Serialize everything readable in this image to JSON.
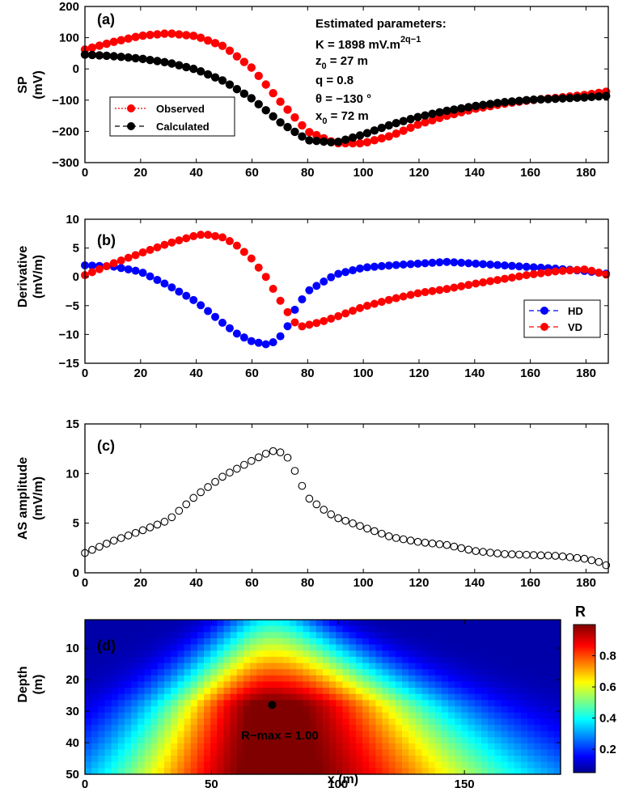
{
  "chart_data": [
    {
      "type": "line",
      "panel_label": "(a)",
      "ylabel_line1": "SP",
      "ylabel_line2": "(mV)",
      "xlim": [
        0,
        188
      ],
      "ylim": [
        -300,
        200
      ],
      "x_ticks": [
        0,
        20,
        40,
        60,
        80,
        100,
        120,
        140,
        160,
        180
      ],
      "y_ticks": [
        200,
        100,
        0,
        -100,
        -200,
        -300
      ],
      "annotation": {
        "title": "Estimated parameters:",
        "k_line": "K = 1898 mV.m",
        "k_sup": "2q−1",
        "z_line": "z",
        "z_sub": "0",
        "z_value": " = 27 m",
        "q_line": "q = 0.8",
        "theta_line": "θ = −130 °",
        "x_line": "x",
        "x_sub": "0",
        "x_value": " = 72 m"
      },
      "legend": [
        "Observed",
        "Calculated"
      ],
      "series": [
        {
          "name": "Observed",
          "color": "#ff0000",
          "x": [
            0,
            10,
            20,
            30,
            40,
            50,
            60,
            70,
            80,
            90,
            100,
            110,
            120,
            130,
            140,
            150,
            160,
            170,
            180,
            188
          ],
          "y": [
            62,
            86,
            106,
            114,
            105,
            72,
            3,
            -103,
            -200,
            -238,
            -238,
            -214,
            -177,
            -150,
            -128,
            -112,
            -100,
            -92,
            -83,
            -72
          ]
        },
        {
          "name": "Calculated",
          "color": "#000000",
          "x": [
            0,
            10,
            20,
            30,
            40,
            50,
            60,
            70,
            80,
            90,
            100,
            110,
            120,
            130,
            140,
            150,
            160,
            170,
            180,
            188
          ],
          "y": [
            46,
            41,
            33,
            20,
            -2,
            -39,
            -95,
            -170,
            -228,
            -236,
            -210,
            -178,
            -153,
            -134,
            -119,
            -107,
            -99,
            -95,
            -91,
            -86
          ]
        }
      ]
    },
    {
      "type": "line",
      "panel_label": "(b)",
      "ylabel_line1": "Derivative",
      "ylabel_line2": "(mV/m)",
      "xlim": [
        0,
        188
      ],
      "ylim": [
        -15,
        10
      ],
      "x_ticks": [
        0,
        20,
        40,
        60,
        80,
        100,
        120,
        140,
        160,
        180
      ],
      "y_ticks": [
        10,
        5,
        0,
        -5,
        -10,
        -15
      ],
      "legend": [
        "HD",
        "VD"
      ],
      "series": [
        {
          "name": "HD",
          "color": "#0000ff",
          "x": [
            0,
            10,
            20,
            30,
            40,
            50,
            55,
            60,
            65,
            68,
            72,
            75,
            80,
            90,
            100,
            110,
            120,
            130,
            140,
            150,
            160,
            170,
            180,
            188
          ],
          "y": [
            2,
            1.8,
            0.9,
            -1.5,
            -4.3,
            -8.2,
            -10,
            -11.2,
            -11.7,
            -11.3,
            -9.5,
            -6,
            -2.5,
            0.4,
            1.6,
            2,
            2.3,
            2.6,
            2.3,
            2,
            1.7,
            1.4,
            1,
            0.5
          ]
        },
        {
          "name": "VD",
          "color": "#ff0000",
          "x": [
            0,
            10,
            20,
            30,
            40,
            43,
            50,
            55,
            60,
            65,
            70,
            75,
            78,
            85,
            90,
            100,
            110,
            120,
            130,
            140,
            150,
            160,
            170,
            180,
            188
          ],
          "y": [
            0.3,
            2.3,
            4.1,
            5.8,
            7.2,
            7.4,
            6.8,
            5.3,
            3.1,
            0,
            -4,
            -7.8,
            -8.6,
            -7.8,
            -7,
            -5.2,
            -3.9,
            -2.8,
            -2.1,
            -1.2,
            -0.4,
            0.4,
            1,
            1.3,
            0.3
          ]
        }
      ]
    },
    {
      "type": "scatter",
      "panel_label": "(c)",
      "ylabel_line1": "AS amplitude",
      "ylabel_line2": "(mV/m)",
      "xlim": [
        0,
        188
      ],
      "ylim": [
        0,
        15
      ],
      "x_ticks": [
        0,
        20,
        40,
        60,
        80,
        100,
        120,
        140,
        160,
        180
      ],
      "y_ticks": [
        15,
        10,
        5,
        0
      ],
      "series": [
        {
          "name": "AS amplitude",
          "color": "#000000",
          "x": [
            0,
            10,
            20,
            30,
            40,
            50,
            60,
            65,
            68,
            72,
            75,
            80,
            85,
            90,
            100,
            110,
            120,
            130,
            140,
            150,
            160,
            170,
            180,
            186,
            188
          ],
          "y": [
            2,
            3.2,
            4.2,
            5.3,
            7.8,
            9.8,
            11.3,
            12,
            12.3,
            12,
            10.5,
            7.6,
            6.5,
            5.6,
            4.6,
            3.6,
            3.1,
            2.8,
            2.2,
            1.9,
            1.8,
            1.7,
            1.4,
            1,
            0.6
          ]
        }
      ]
    },
    {
      "type": "heatmap",
      "panel_label": "(d)",
      "ylabel_line1": "Depth",
      "ylabel_line2": "(m)",
      "xlabel": "x (m)",
      "xlim": [
        0,
        188
      ],
      "ylim": [
        1,
        50
      ],
      "x_ticks": [
        0,
        50,
        100,
        150
      ],
      "y_ticks": [
        10,
        20,
        30,
        40,
        50
      ],
      "max_point": {
        "x": 74,
        "depth": 28
      },
      "annotation": "R−max = 1.00",
      "colorbar": {
        "label": "R",
        "ticks": [
          0.8,
          0.6,
          0.4,
          0.2
        ],
        "range": [
          0.05,
          1.0
        ]
      }
    }
  ]
}
